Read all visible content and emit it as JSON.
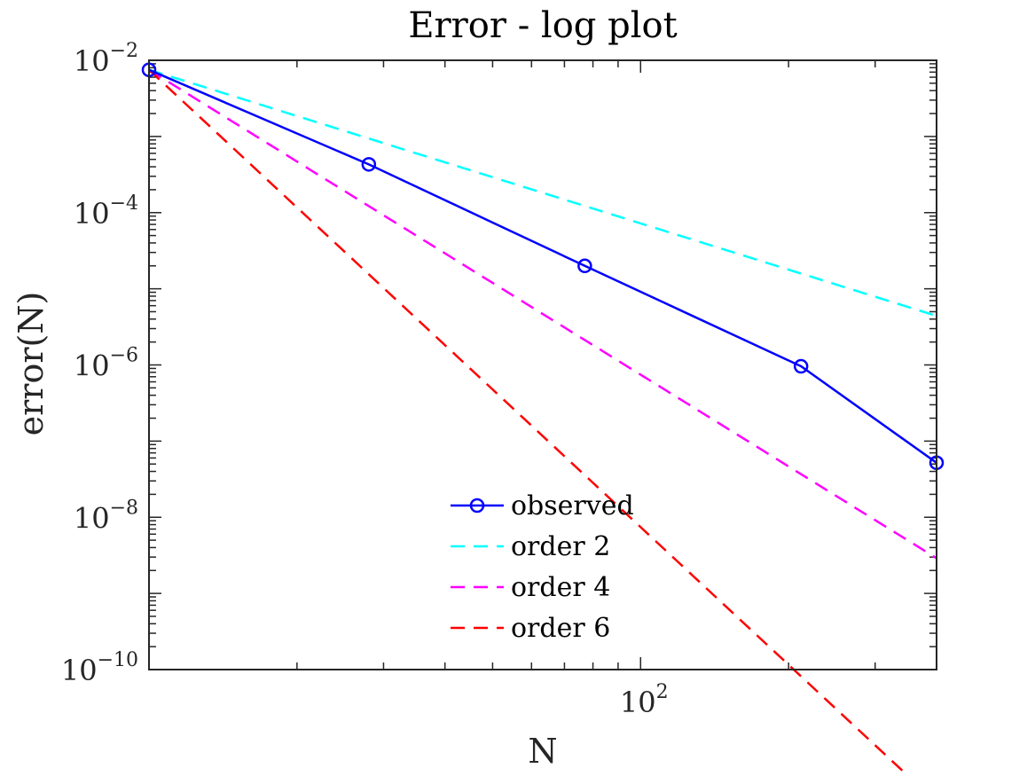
{
  "chart_data": {
    "type": "line",
    "title": "Error - log plot",
    "xlabel": "N",
    "ylabel": "error(N)",
    "xscale": "log",
    "yscale": "log",
    "xlim": [
      10,
      400
    ],
    "ylim": [
      1e-10,
      0.01
    ],
    "x_ticks": [
      {
        "value": 100,
        "base": "10",
        "exp": "2"
      }
    ],
    "y_ticks": [
      {
        "value": 1e-10,
        "base": "10",
        "exp": "−10"
      },
      {
        "value": 1e-08,
        "base": "10",
        "exp": "−8"
      },
      {
        "value": 1e-06,
        "base": "10",
        "exp": "−6"
      },
      {
        "value": 0.0001,
        "base": "10",
        "exp": "−4"
      },
      {
        "value": 0.01,
        "base": "10",
        "exp": "−2"
      }
    ],
    "grid": false,
    "box": true,
    "legend_position": "bottom-center",
    "series": [
      {
        "name": "observed",
        "color": "#0000ff",
        "style": "solid",
        "marker": "circle",
        "x": [
          10,
          28,
          77,
          212,
          400
        ],
        "y": [
          0.0075,
          0.00043,
          2e-05,
          9.6e-07,
          5.2e-08
        ]
      },
      {
        "name": "order 2",
        "color": "#00ffff",
        "style": "dashed",
        "marker": "none",
        "x": [
          10,
          400
        ],
        "y": [
          0.0075,
          4.4e-06
        ]
      },
      {
        "name": "order 4",
        "color": "#ff00ff",
        "style": "dashed",
        "marker": "none",
        "x": [
          10,
          400
        ],
        "y": [
          0.0075,
          2.9e-09
        ]
      },
      {
        "name": "order 6",
        "color": "#ff0000",
        "style": "dashed",
        "marker": "none",
        "x": [
          10,
          400
        ],
        "y": [
          0.0075,
          1.8e-12
        ]
      }
    ]
  }
}
